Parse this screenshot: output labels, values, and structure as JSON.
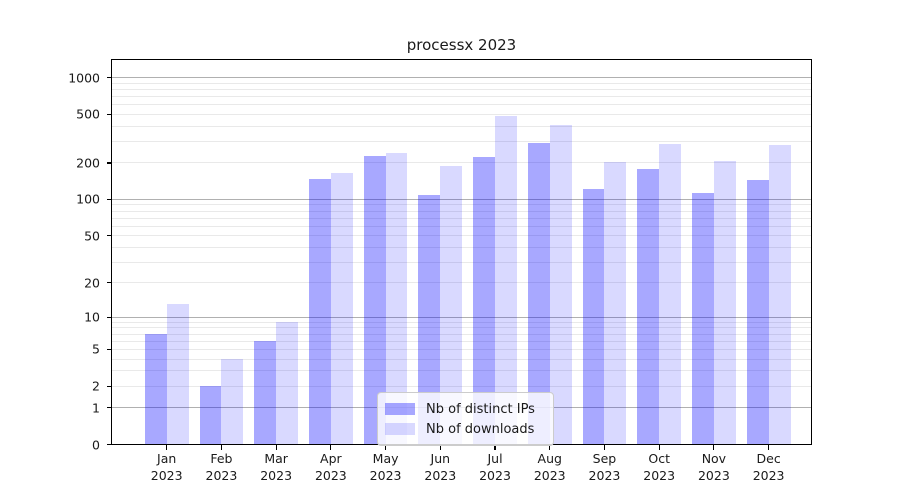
{
  "chart_data": {
    "type": "bar",
    "title": "processx 2023",
    "xlabel": "",
    "ylabel": "",
    "categories": [
      "Jan 2023",
      "Feb 2023",
      "Mar 2023",
      "Apr 2023",
      "May 2023",
      "Jun 2023",
      "Jul 2023",
      "Aug 2023",
      "Sep 2023",
      "Oct 2023",
      "Nov 2023",
      "Dec 2023"
    ],
    "series": [
      {
        "name": "Nb of distinct IPs",
        "color": "rgba(0,0,255,0.34)",
        "values": [
          7,
          2,
          6,
          145,
          224,
          107,
          222,
          286,
          120,
          178,
          111,
          142
        ]
      },
      {
        "name": "Nb of downloads",
        "color": "rgba(0,0,255,0.15)",
        "values": [
          13,
          4,
          9,
          165,
          241,
          185,
          480,
          404,
          202,
          282,
          204,
          277
        ]
      }
    ],
    "yscale": "log1p",
    "ylim": [
      0,
      1380
    ],
    "y_ticks": [
      0,
      1,
      2,
      5,
      10,
      20,
      50,
      100,
      200,
      500,
      1000
    ],
    "gridlines": {
      "major": [
        1,
        10,
        100,
        1000
      ],
      "minor": [
        2,
        3,
        4,
        5,
        6,
        7,
        8,
        9,
        20,
        30,
        40,
        50,
        60,
        70,
        80,
        90,
        200,
        300,
        400,
        500,
        600,
        700,
        800,
        900
      ]
    },
    "grid": true,
    "legend_position": "lower-center-inside"
  },
  "colors": {
    "background": "#ffffff",
    "spine": "#000000",
    "grid_major": "#b0b0b0",
    "grid_minor": "#e9e9e9",
    "text": "#1a1a1a",
    "legend_border": "#cccccc",
    "legend_bg": "rgba(255,255,255,0.8)"
  }
}
